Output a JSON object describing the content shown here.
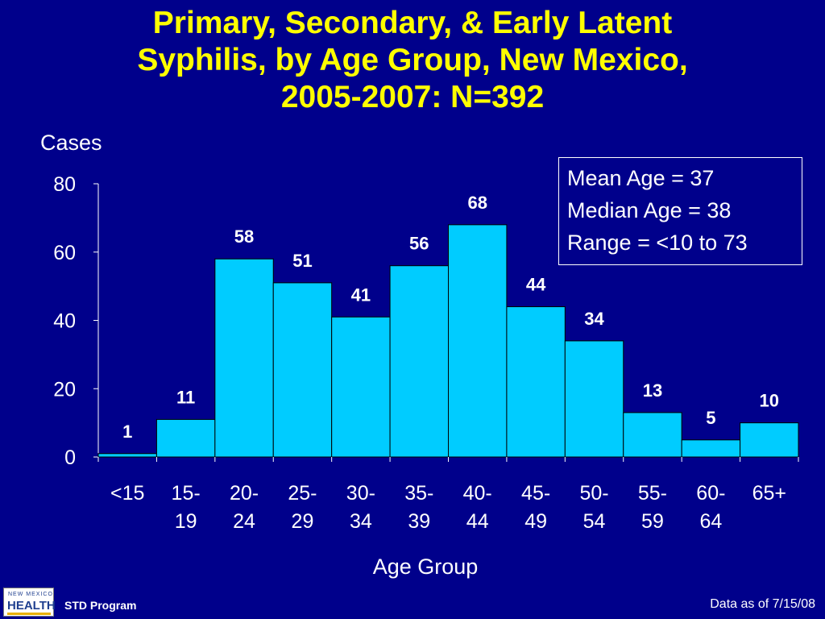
{
  "title_lines": [
    "Primary, Secondary, & Early Latent",
    "Syphilis, by Age Group, New Mexico,",
    "2005-2007:  N=392"
  ],
  "stats": {
    "mean": "Mean Age = 37",
    "median": "Median Age = 38",
    "range": "Range = <10 to 73"
  },
  "footer": {
    "logo_text_top": "NEW MEXICO",
    "logo_text_main": "HEALTH",
    "program": "STD Program",
    "date": "Data as of 7/15/08"
  },
  "colors": {
    "background": "#00008b",
    "title": "#ffff00",
    "bar": "#00ccff",
    "text": "#ffffff"
  },
  "chart_data": {
    "type": "bar",
    "ylabel": "Cases",
    "xlabel": "Age Group",
    "ylim": [
      0,
      80
    ],
    "yticks": [
      0,
      20,
      40,
      60,
      80
    ],
    "categories": [
      [
        "<15"
      ],
      [
        "15-",
        "19"
      ],
      [
        "20-",
        "24"
      ],
      [
        "25-",
        "29"
      ],
      [
        "30-",
        "34"
      ],
      [
        "35-",
        "39"
      ],
      [
        "40-",
        "44"
      ],
      [
        "45-",
        "49"
      ],
      [
        "50-",
        "54"
      ],
      [
        "55-",
        "59"
      ],
      [
        "60-",
        "64"
      ],
      [
        "65+"
      ]
    ],
    "values": [
      1,
      11,
      58,
      51,
      41,
      56,
      68,
      44,
      34,
      13,
      5,
      10
    ],
    "data_labels": true,
    "grid": false
  }
}
